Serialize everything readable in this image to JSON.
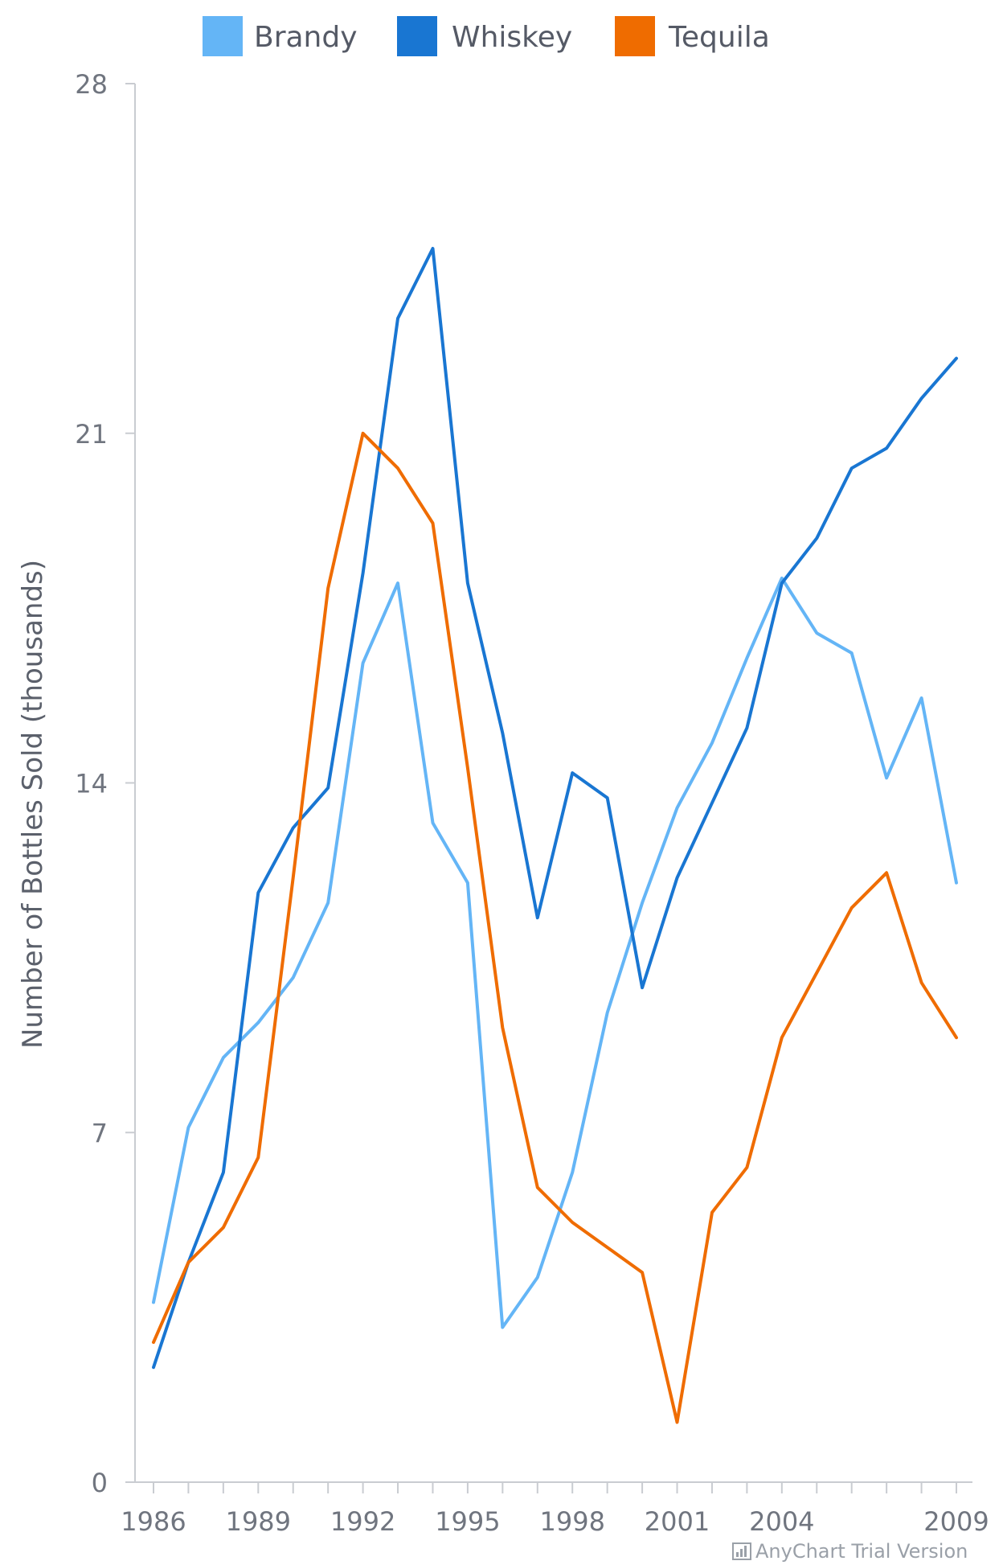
{
  "chart_data": {
    "type": "line",
    "title": "",
    "xlabel": "",
    "ylabel": "Number of Bottles Sold (thousands)",
    "ylim": [
      0,
      28
    ],
    "yticks": [
      0,
      7,
      14,
      21,
      28
    ],
    "xlim": [
      1986,
      2009
    ],
    "xticks": [
      1986,
      1989,
      1992,
      1995,
      1998,
      2001,
      2004,
      2009
    ],
    "x": [
      1986,
      1987,
      1988,
      1989,
      1990,
      1991,
      1992,
      1993,
      1994,
      1995,
      1996,
      1997,
      1998,
      1999,
      2000,
      2001,
      2002,
      2003,
      2004,
      2005,
      2006,
      2007,
      2008,
      2009
    ],
    "grid": false,
    "legend_position": "top-center",
    "series": [
      {
        "name": "Brandy",
        "color": "#64b5f6",
        "values": [
          3.6,
          7.1,
          8.5,
          9.2,
          10.1,
          11.6,
          16.4,
          18.0,
          13.2,
          12.0,
          3.1,
          4.1,
          6.2,
          9.4,
          11.6,
          13.5,
          14.8,
          16.5,
          18.1,
          17.0,
          16.6,
          14.1,
          15.7,
          12.0
        ]
      },
      {
        "name": "Whiskey",
        "color": "#1976d2",
        "values": [
          2.3,
          4.4,
          6.2,
          11.8,
          13.1,
          13.9,
          18.2,
          23.3,
          24.7,
          18.0,
          15.0,
          11.3,
          14.2,
          13.7,
          9.9,
          12.1,
          13.6,
          15.1,
          18.0,
          18.9,
          20.3,
          20.7,
          21.7,
          22.5
        ]
      },
      {
        "name": "Tequila",
        "color": "#ef6c00",
        "values": [
          2.8,
          4.4,
          5.1,
          6.5,
          12.1,
          17.9,
          21.0,
          20.3,
          19.2,
          14.3,
          9.1,
          5.9,
          5.2,
          4.7,
          4.2,
          1.2,
          5.4,
          6.3,
          8.9,
          10.2,
          11.5,
          12.2,
          10.0,
          8.9
        ]
      }
    ]
  },
  "credits": {
    "text": "AnyChart Trial Version",
    "icon": "chart-bars-icon"
  },
  "colors": {
    "axis_line": "#c9ccd1",
    "tick_label": "#70757f",
    "axis_title": "#5b606b",
    "legend_text": "#555a66"
  }
}
